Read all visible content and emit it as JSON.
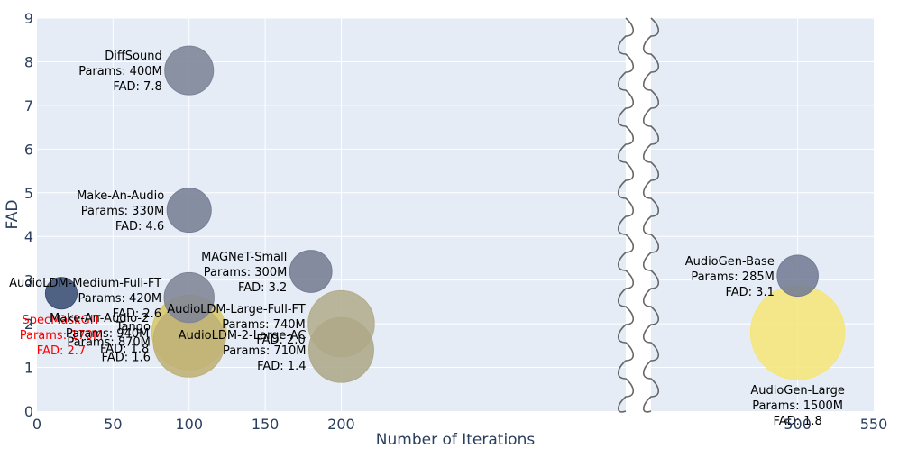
{
  "chart_data": {
    "type": "scatter",
    "title": "",
    "xlabel": "Number of Iterations",
    "ylabel": "FAD",
    "xlim": [
      0,
      550
    ],
    "ylim": [
      0,
      9
    ],
    "x_ticks": [
      {
        "value": 0,
        "label": "0"
      },
      {
        "value": 50,
        "label": "50"
      },
      {
        "value": 100,
        "label": "100"
      },
      {
        "value": 150,
        "label": "150"
      },
      {
        "value": 200,
        "label": "200"
      },
      {
        "value": 500,
        "label": "500"
      },
      {
        "value": 550,
        "label": "550"
      }
    ],
    "y_ticks": [
      {
        "value": 0,
        "label": "0"
      },
      {
        "value": 1,
        "label": "1"
      },
      {
        "value": 2,
        "label": "2"
      },
      {
        "value": 3,
        "label": "3"
      },
      {
        "value": 4,
        "label": "4"
      },
      {
        "value": 5,
        "label": "5"
      },
      {
        "value": 6,
        "label": "6"
      },
      {
        "value": 7,
        "label": "7"
      },
      {
        "value": 8,
        "label": "8"
      },
      {
        "value": 9,
        "label": "9"
      }
    ],
    "axis_break": "between 200 and 500",
    "grid": true,
    "colors": {
      "background": "#e5ecf6",
      "grid": "#ffffff",
      "highlight_text": "#ff0000",
      "text": "#000000"
    },
    "points": [
      {
        "name": "SpecMaskGIT",
        "x": 16,
        "y": 2.7,
        "params_m": 170,
        "fad": 2.7,
        "lines": [
          "SpecMaskGIT",
          "Params: 170M",
          "FAD: 2.7"
        ],
        "color": "#3b4f74",
        "highlight": true,
        "label_pos": "below-center"
      },
      {
        "name": "DiffSound",
        "x": 100,
        "y": 7.8,
        "params_m": 400,
        "fad": 7.8,
        "lines": [
          "DiffSound",
          "Params: 400M",
          "FAD: 7.8"
        ],
        "color": "#7d8497",
        "label_pos": "left"
      },
      {
        "name": "Make-An-Audio",
        "x": 100,
        "y": 4.6,
        "params_m": 330,
        "fad": 4.6,
        "lines": [
          "Make-An-Audio",
          "Params: 330M",
          "FAD: 4.6"
        ],
        "color": "#787f94",
        "label_pos": "left"
      },
      {
        "name": "AudioLDM-Medium-Full-FT",
        "x": 100,
        "y": 2.6,
        "params_m": 420,
        "fad": 2.6,
        "lines": [
          "AudioLDM-Medium-Full-FT",
          "Params: 420M",
          "FAD: 2.6"
        ],
        "color": "#7f8596",
        "label_pos": "left"
      },
      {
        "name": "Make-An-Audio-2",
        "x": 100,
        "y": 1.8,
        "params_m": 940,
        "fad": 1.8,
        "lines": [
          "Make-An-Audio-2",
          "Params: 940M",
          "FAD: 1.8"
        ],
        "color": "#d7c86a",
        "label_pos": "left"
      },
      {
        "name": "Tango",
        "x": 100,
        "y": 1.6,
        "params_m": 870,
        "fad": 1.6,
        "lines": [
          "Tango",
          "Params: 870M",
          "FAD: 1.6"
        ],
        "color": "#bfb077",
        "label_pos": "left"
      },
      {
        "name": "MAGNeT-Small",
        "x": 180,
        "y": 3.2,
        "params_m": 300,
        "fad": 3.2,
        "lines": [
          "MAGNeT-Small",
          "Params: 300M",
          "FAD: 3.2"
        ],
        "color": "#767d93",
        "label_pos": "left"
      },
      {
        "name": "AudioLDM-Large-Full-FT",
        "x": 200,
        "y": 2.0,
        "params_m": 740,
        "fad": 2.0,
        "lines": [
          "AudioLDM-Large-Full-FT",
          "Params: 740M",
          "FAD: 2.0"
        ],
        "color": "#b3ad8d",
        "label_pos": "left"
      },
      {
        "name": "AudioLDM-2-Large-AC",
        "x": 200,
        "y": 1.4,
        "params_m": 710,
        "fad": 1.4,
        "lines": [
          "AudioLDM-2-Large-AC",
          "Params: 710M",
          "FAD: 1.4"
        ],
        "color": "#aea989",
        "label_pos": "left"
      },
      {
        "name": "AudioGen-Base",
        "x": 500,
        "y": 3.1,
        "params_m": 285,
        "fad": 3.1,
        "lines": [
          "AudioGen-Base",
          "Params: 285M",
          "FAD: 3.1"
        ],
        "color": "#737c94",
        "label_pos": "left"
      },
      {
        "name": "AudioGen-Large",
        "x": 500,
        "y": 1.8,
        "params_m": 1500,
        "fad": 1.8,
        "lines": [
          "AudioGen-Large",
          "Params: 1500M",
          "FAD: 1.8"
        ],
        "color": "#f5e67a",
        "label_pos": "below-center"
      }
    ]
  }
}
